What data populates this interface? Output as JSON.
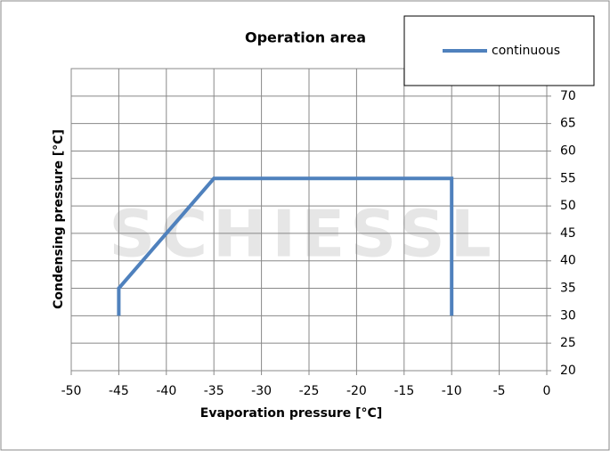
{
  "chart_data": {
    "type": "line",
    "title": "Operation area",
    "x_label": "Evaporation pressure [°C]",
    "y_label": "Condensing pressure [°C]",
    "watermark": "SCHIESSL",
    "series": [
      {
        "name": "continuous",
        "color": "#4f81bd",
        "x": [
          -45,
          -45,
          -35,
          -10,
          -10
        ],
        "values": [
          30,
          35,
          55,
          55,
          30
        ]
      }
    ],
    "xlim": [
      -50,
      0
    ],
    "xticks": [
      -50,
      -45,
      -40,
      -35,
      -30,
      -25,
      -20,
      -15,
      -10,
      -5,
      0
    ],
    "ylim": [
      20,
      75
    ],
    "yticks": [
      20,
      25,
      30,
      35,
      40,
      45,
      50,
      55,
      60,
      65,
      70
    ],
    "grid": true,
    "legend": "top-right"
  }
}
